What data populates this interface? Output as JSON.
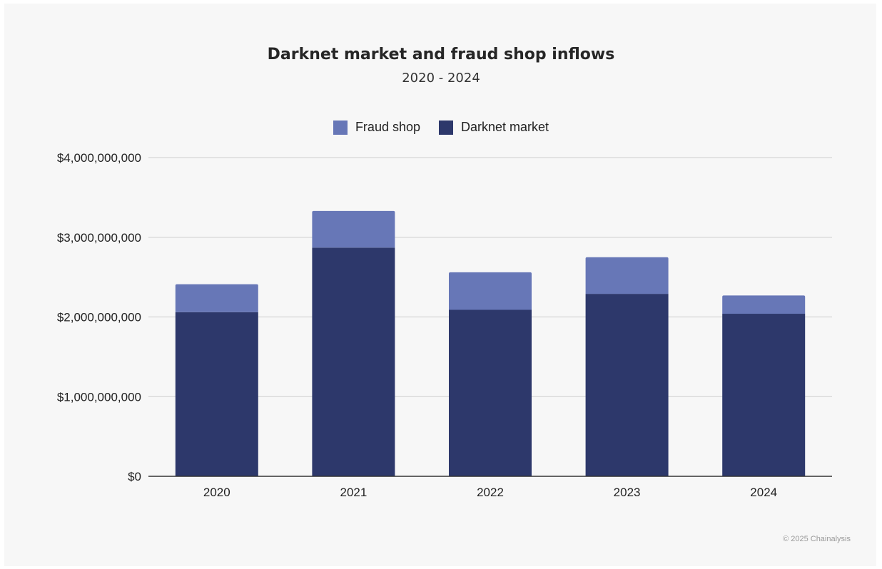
{
  "chart_data": {
    "type": "bar",
    "stacked": true,
    "title": "Darknet market and fraud shop inflows",
    "subtitle": "2020 - 2024",
    "categories": [
      "2020",
      "2021",
      "2022",
      "2023",
      "2024"
    ],
    "series": [
      {
        "name": "Darknet market",
        "values": [
          2060000000,
          2870000000,
          2090000000,
          2290000000,
          2040000000
        ],
        "color": "#2d386b"
      },
      {
        "name": "Fraud shop",
        "values": [
          350000000,
          460000000,
          470000000,
          460000000,
          230000000
        ],
        "color": "#6777b7"
      }
    ],
    "legend_order": [
      "Fraud shop",
      "Darknet market"
    ],
    "ylim": [
      0,
      4000000000
    ],
    "yticks": [
      0,
      1000000000,
      2000000000,
      3000000000,
      4000000000
    ],
    "ytick_labels": [
      "$0",
      "$1,000,000,000",
      "$2,000,000,000",
      "$3,000,000,000",
      "$4,000,000,000"
    ],
    "xlabel": "",
    "ylabel": "",
    "grid": true,
    "legend_position": "top-center"
  },
  "footer": {
    "copyright": "© 2025 Chainalysis"
  },
  "colors": {
    "background": "#f7f7f7",
    "gridline": "#d6d6d6",
    "axis": "#333333"
  }
}
